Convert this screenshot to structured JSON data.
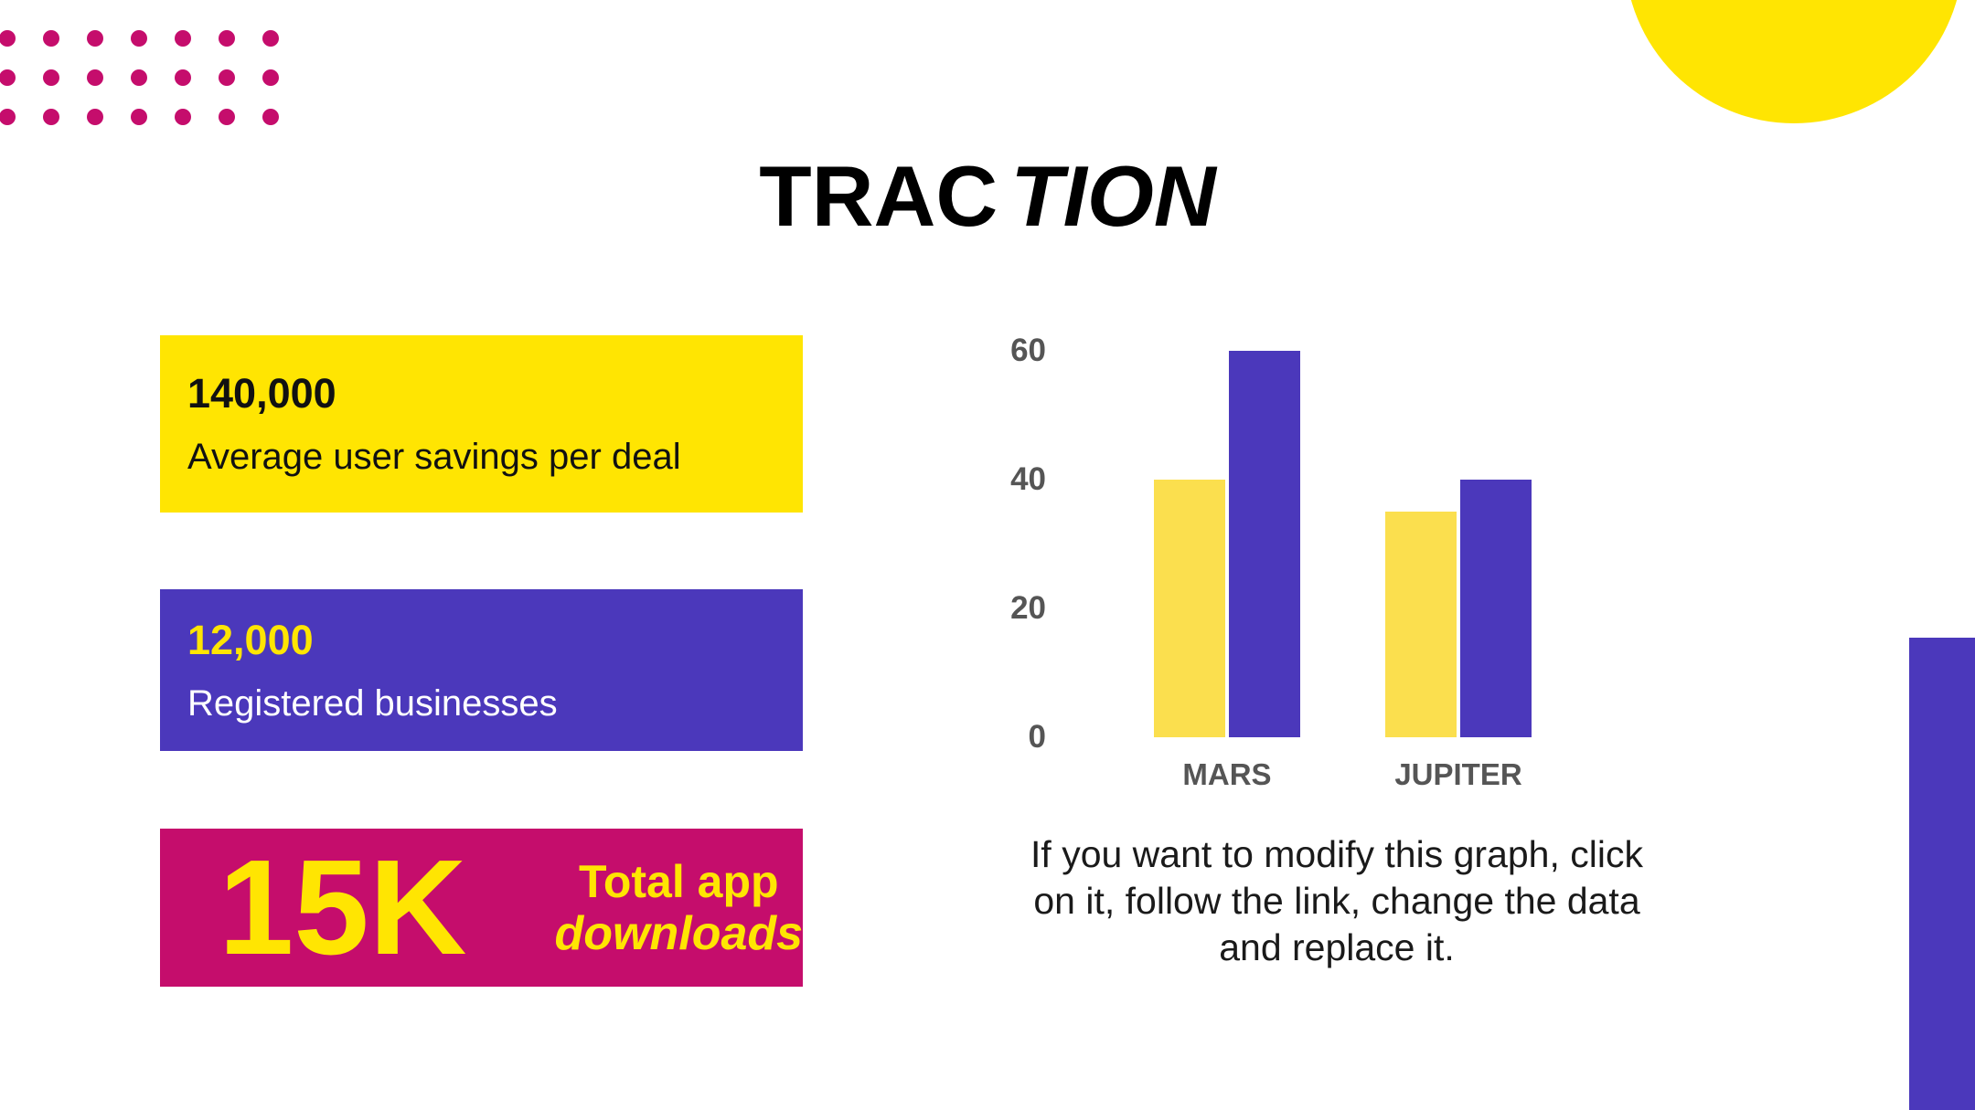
{
  "title": {
    "part_regular": "TRAC",
    "part_italic": "TION"
  },
  "stats": {
    "savings": {
      "value": "140,000",
      "label": "Average user savings per deal"
    },
    "businesses": {
      "value": "12,000",
      "label": "Registered businesses"
    },
    "downloads": {
      "value": "15K",
      "label_line1": "Total app",
      "label_line2": "downloads"
    }
  },
  "caption": {
    "lines": [
      "If you want to modify this graph, click",
      "on it, follow the link, change the data",
      "and replace it."
    ]
  },
  "chart_data": {
    "type": "bar",
    "categories": [
      "MARS",
      "JUPITER"
    ],
    "series": [
      {
        "name": "yellow",
        "color": "#FBDF4E",
        "values": [
          40,
          35
        ]
      },
      {
        "name": "purple",
        "color": "#4B38BB",
        "values": [
          60,
          40
        ]
      }
    ],
    "title": "",
    "xlabel": "",
    "ylabel": "",
    "ylim": [
      0,
      60
    ],
    "yticks": [
      0,
      20,
      40,
      60
    ],
    "grid": false,
    "legend": "none"
  },
  "colors": {
    "yellow": "#FFE502",
    "purple": "#4B38BB",
    "magenta": "#C50D6C",
    "axis_label_gray": "#555555"
  },
  "decor": {
    "dots_rows": 3,
    "dots_cols": 7
  }
}
